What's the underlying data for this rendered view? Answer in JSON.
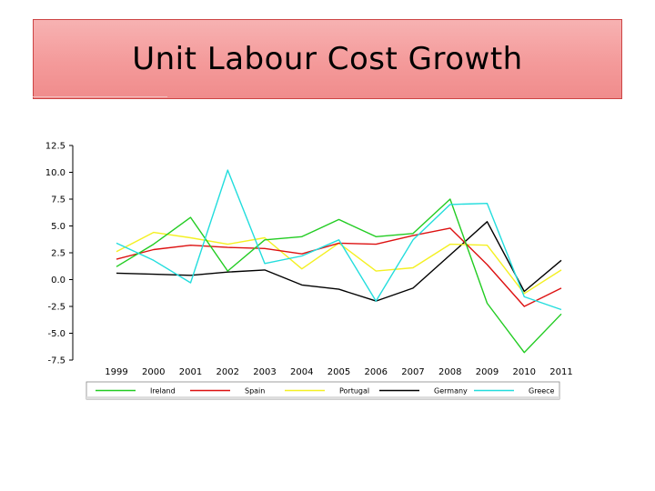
{
  "slide": {
    "title": "Unit Labour Cost Growth"
  },
  "chart_data": {
    "type": "line",
    "title": "",
    "xlabel": "",
    "ylabel": "",
    "x": [
      "1999",
      "2000",
      "2001",
      "2002",
      "2003",
      "2004",
      "2005",
      "2006",
      "2007",
      "2008",
      "2009",
      "2010",
      "2011"
    ],
    "yticks": [
      "-7.5",
      "-5.0",
      "-2.5",
      "0.0",
      "2.5",
      "5.0",
      "7.5",
      "10.0",
      "12.5"
    ],
    "ylim": [
      -7.5,
      12.5
    ],
    "grid": false,
    "legend_position": "bottom",
    "series": [
      {
        "name": "Ireland",
        "color": "#22cc22",
        "values": [
          1.2,
          3.3,
          5.8,
          0.8,
          3.7,
          4.0,
          5.6,
          4.0,
          4.3,
          7.5,
          -2.2,
          -6.8,
          -3.2
        ]
      },
      {
        "name": "Spain",
        "color": "#dd1111",
        "values": [
          1.9,
          2.8,
          3.2,
          3.0,
          2.9,
          2.4,
          3.4,
          3.3,
          4.1,
          4.8,
          1.4,
          -2.5,
          -0.8
        ]
      },
      {
        "name": "Portugal",
        "color": "#f4f022",
        "values": [
          2.6,
          4.4,
          3.9,
          3.3,
          3.9,
          1.0,
          3.4,
          0.8,
          1.1,
          3.3,
          3.2,
          -1.3,
          0.9
        ]
      },
      {
        "name": "Germany",
        "color": "#000000",
        "values": [
          0.6,
          0.5,
          0.4,
          0.7,
          0.9,
          -0.5,
          -0.9,
          -2.0,
          -0.8,
          2.3,
          5.4,
          -1.1,
          1.8
        ]
      },
      {
        "name": "Greece",
        "color": "#22dddd",
        "values": [
          3.4,
          1.8,
          -0.3,
          10.2,
          1.5,
          2.2,
          3.7,
          -2.0,
          3.7,
          7.0,
          7.1,
          -1.6,
          -2.8
        ]
      }
    ]
  }
}
